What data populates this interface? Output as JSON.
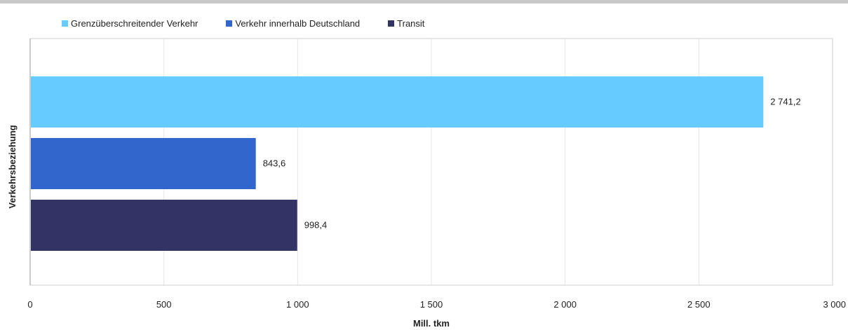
{
  "chart_data": {
    "type": "bar",
    "orientation": "horizontal",
    "title": "",
    "xlabel": "Mill. tkm",
    "ylabel": "Verkehrsbeziehung",
    "xlim": [
      0,
      3000
    ],
    "xticks": [
      0,
      500,
      1000,
      1500,
      2000,
      2500,
      3000
    ],
    "xtick_labels": [
      "0",
      "500",
      "1 000",
      "1 500",
      "2 000",
      "2 500",
      "3 000"
    ],
    "grid": "vertical",
    "legend_position": "top",
    "series": [
      {
        "name": "Grenzüberschreitender Verkehr",
        "value": 2741.2,
        "label": "2 741,2",
        "color": "#66ccff"
      },
      {
        "name": "Verkehr innerhalb Deutschland",
        "value": 843.6,
        "label": "843,6",
        "color": "#3366cc"
      },
      {
        "name": "Transit",
        "value": 998.4,
        "label": "998,4",
        "color": "#333366"
      }
    ]
  }
}
